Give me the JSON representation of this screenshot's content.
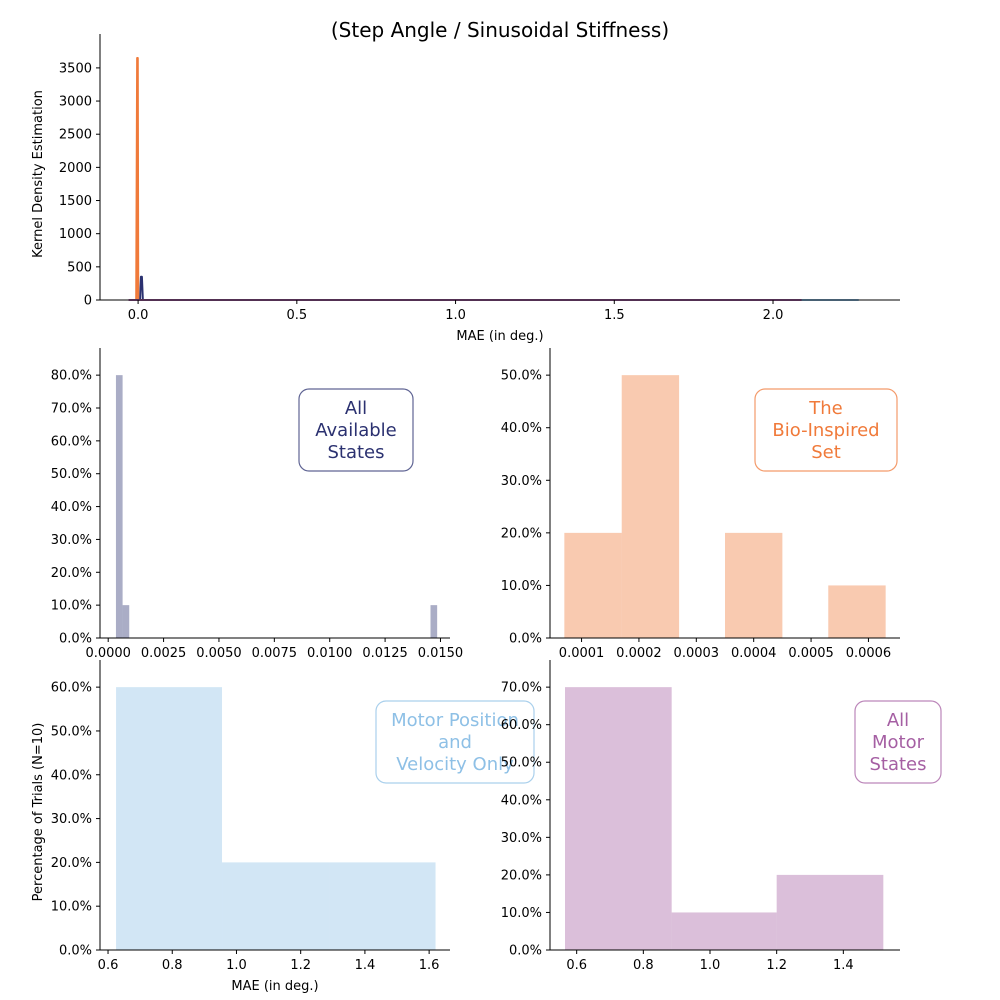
{
  "title": "(Step Angle / Sinusoidal Stiffness)",
  "colors": {
    "all_states": "#2b3170",
    "bio_inspired": "#f07a3a",
    "motor_pos_vel": "#8ec0e6",
    "all_motor": "#a55fa3"
  },
  "chart_data": [
    {
      "id": "kde",
      "type": "line",
      "title": "(Step Angle / Sinusoidal Stiffness)",
      "xlabel": "MAE (in deg.)",
      "ylabel": "Kernel Density Estimation",
      "xlim": [
        -0.12,
        2.4
      ],
      "ylim": [
        0,
        3800
      ],
      "xticks": [
        0.0,
        0.5,
        1.0,
        1.5,
        2.0
      ],
      "xtick_labels": [
        "0.0",
        "0.5",
        "1.0",
        "1.5",
        "2.0"
      ],
      "yticks": [
        0,
        500,
        1000,
        1500,
        2000,
        2500,
        3000,
        3500
      ],
      "ytick_labels": [
        "0",
        "500",
        "1000",
        "1500",
        "2000",
        "2500",
        "3000",
        "3500"
      ],
      "grid": false,
      "series": [
        {
          "color": "#2b3170",
          "x": [
            -0.01,
            0.006,
            0.009,
            0.012,
            0.015,
            0.2,
            1.0,
            2.09
          ],
          "y": [
            0,
            0,
            350,
            350,
            0,
            0,
            0,
            0
          ]
        },
        {
          "color": "#f07a3a",
          "x": [
            -0.02,
            -0.006,
            -0.003,
            -0.001,
            0.0005,
            0.004,
            0.5,
            2.09
          ],
          "y": [
            0,
            0,
            3650,
            3650,
            0,
            0,
            0,
            0
          ]
        },
        {
          "color": "#8ec0e6",
          "x": [
            0.6,
            1.0,
            1.6,
            2.27
          ],
          "y": [
            0,
            0,
            0,
            0
          ]
        },
        {
          "color": "#a55fa3",
          "x": [
            -0.03,
            0.5,
            1.0,
            1.5,
            2.09
          ],
          "y": [
            0,
            0,
            0,
            0,
            0
          ]
        }
      ]
    },
    {
      "id": "hist-all-states",
      "type": "bar",
      "legend_text": [
        "All",
        "Available",
        "States"
      ],
      "xlim": [
        -0.00037,
        0.01543
      ],
      "ylim": [
        0,
        0.84
      ],
      "xticks": [
        0.0,
        0.0025,
        0.005,
        0.0075,
        0.01,
        0.0125,
        0.015
      ],
      "xtick_labels": [
        "0.0000",
        "0.0025",
        "0.0050",
        "0.0075",
        "0.0100",
        "0.0125",
        "0.0150"
      ],
      "yticks": [
        0,
        0.1,
        0.2,
        0.3,
        0.4,
        0.5,
        0.6,
        0.7,
        0.8
      ],
      "ytick_labels": [
        "0.0%",
        "10.0%",
        "20.0%",
        "30.0%",
        "40.0%",
        "50.0%",
        "60.0%",
        "70.0%",
        "80.0%"
      ],
      "bin_edges": [
        0.00035,
        0.00065,
        0.00095,
        0.01455,
        0.01485
      ],
      "values": [
        0.8,
        0.1,
        0,
        0.1
      ],
      "color": "#2b3170",
      "alpha": 0.4
    },
    {
      "id": "hist-bio",
      "type": "bar",
      "legend_text": [
        "The",
        "Bio-Inspired",
        "Set"
      ],
      "xlim": [
        4.5e-05,
        0.000655
      ],
      "ylim": [
        0,
        0.525
      ],
      "xticks": [
        0.0001,
        0.0002,
        0.0003,
        0.0004,
        0.0005,
        0.0006
      ],
      "xtick_labels": [
        "0.0001",
        "0.0002",
        "0.0003",
        "0.0004",
        "0.0005",
        "0.0006"
      ],
      "yticks": [
        0,
        0.1,
        0.2,
        0.3,
        0.4,
        0.5
      ],
      "ytick_labels": [
        "0.0%",
        "10.0%",
        "20.0%",
        "30.0%",
        "40.0%",
        "50.0%"
      ],
      "bin_edges": [
        7e-05,
        0.00017,
        0.00027,
        0.00035,
        0.00045,
        0.00053,
        0.00063
      ],
      "values": [
        0.2,
        0.5,
        0,
        0.2,
        0,
        0.1
      ],
      "color": "#f07a3a",
      "alpha": 0.4
    },
    {
      "id": "hist-motor-pos-vel",
      "type": "bar",
      "legend_text": [
        "Motor Position",
        "and",
        "Velocity Only"
      ],
      "xlabel": "MAE (in deg.)",
      "ylabel": "Percentage of Trials (N=10)",
      "xlim": [
        0.575,
        1.665
      ],
      "ylim": [
        0,
        0.63
      ],
      "xticks": [
        0.6,
        0.8,
        1.0,
        1.2,
        1.4,
        1.6
      ],
      "xtick_labels": [
        "0.6",
        "0.8",
        "1.0",
        "1.2",
        "1.4",
        "1.6"
      ],
      "yticks": [
        0,
        0.1,
        0.2,
        0.3,
        0.4,
        0.5,
        0.6
      ],
      "ytick_labels": [
        "0.0%",
        "10.0%",
        "20.0%",
        "30.0%",
        "40.0%",
        "50.0%",
        "60.0%"
      ],
      "bin_edges": [
        0.625,
        0.955,
        1.29,
        1.62
      ],
      "values": [
        0.6,
        0.2,
        0.2
      ],
      "color": "#8ec0e6",
      "alpha": 0.4
    },
    {
      "id": "hist-all-motor",
      "type": "bar",
      "legend_text": [
        "All",
        "Motor",
        "States"
      ],
      "xlim": [
        0.52,
        1.57
      ],
      "ylim": [
        0,
        0.735
      ],
      "xticks": [
        0.6,
        0.8,
        1.0,
        1.2,
        1.4
      ],
      "xtick_labels": [
        "0.6",
        "0.8",
        "1.0",
        "1.2",
        "1.4"
      ],
      "yticks": [
        0,
        0.1,
        0.2,
        0.3,
        0.4,
        0.5,
        0.6,
        0.7
      ],
      "ytick_labels": [
        "0.0%",
        "10.0%",
        "20.0%",
        "30.0%",
        "40.0%",
        "50.0%",
        "60.0%",
        "70.0%"
      ],
      "bin_edges": [
        0.565,
        0.885,
        1.2,
        1.52
      ],
      "values": [
        0.7,
        0.1,
        0.2
      ],
      "color": "#a55fa3",
      "alpha": 0.4
    }
  ]
}
